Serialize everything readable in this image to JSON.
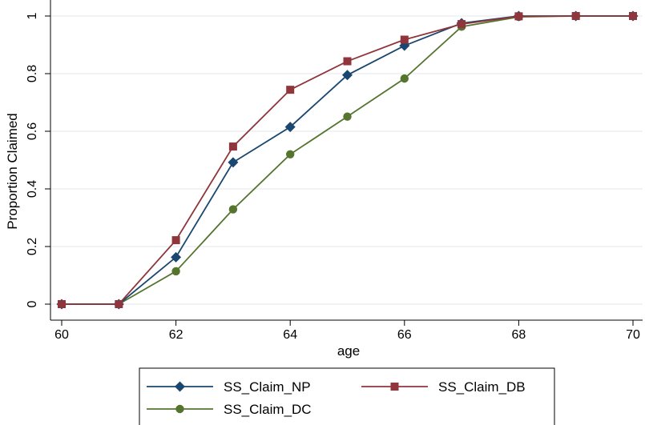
{
  "chart_data": {
    "type": "line",
    "xlabel": "age",
    "ylabel": "Proportion Claimed",
    "x": [
      60,
      61,
      62,
      63,
      64,
      65,
      66,
      67,
      68,
      69,
      70
    ],
    "xlim": [
      60,
      70
    ],
    "ylim": [
      0,
      1
    ],
    "xticks": [
      "60",
      "62",
      "64",
      "66",
      "68",
      "70"
    ],
    "yticks": [
      "0",
      "0.2",
      "0.4",
      "0.6",
      "0.8",
      "1"
    ],
    "grid": true,
    "legend_position": "bottom",
    "series": [
      {
        "name": "SS_Claim_NP",
        "color": "#1a476f",
        "marker": "diamond",
        "values": [
          0,
          0,
          0.163,
          0.492,
          0.615,
          0.795,
          0.897,
          0.975,
          1.0,
          1.0,
          1.0
        ]
      },
      {
        "name": "SS_Claim_DB",
        "color": "#90353b",
        "marker": "square",
        "values": [
          0,
          0,
          0.222,
          0.547,
          0.744,
          0.843,
          0.918,
          0.972,
          0.999,
          1.0,
          1.0
        ]
      },
      {
        "name": "SS_Claim_DC",
        "color": "#55752f",
        "marker": "circle",
        "values": [
          0,
          0,
          0.114,
          0.329,
          0.52,
          0.651,
          0.783,
          0.963,
          0.997,
          1.0,
          1.0
        ]
      }
    ]
  }
}
